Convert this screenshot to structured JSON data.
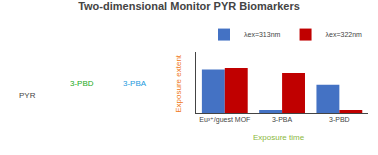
{
  "chart_data": {
    "type": "bar",
    "title": "Two-dimensional Monitor PYR Biomarkers",
    "categories": [
      "Eu³⁺/guest MOF",
      "3-PBA",
      "3-PBD"
    ],
    "series": [
      {
        "name": "λex=313nm",
        "color": "#4472c4",
        "values": [
          0.85,
          0.06,
          0.55
        ]
      },
      {
        "name": "λex=322nm",
        "color": "#c00000",
        "values": [
          0.88,
          0.78,
          0.06
        ]
      }
    ],
    "ylim": [
      0,
      1.2
    ],
    "yticks": [],
    "tick_labels": "x",
    "grid": false,
    "legend": "upper right",
    "annotations": [
      {
        "text": "PYR"
      },
      {
        "text": "3-PBD",
        "color": "#22aa22"
      },
      {
        "text": "3-PBA",
        "color": "#2299dd"
      },
      {
        "text": "Exposure extent",
        "color": "#f07820"
      },
      {
        "text": "Exposure time",
        "color": "#8ab840"
      }
    ]
  }
}
